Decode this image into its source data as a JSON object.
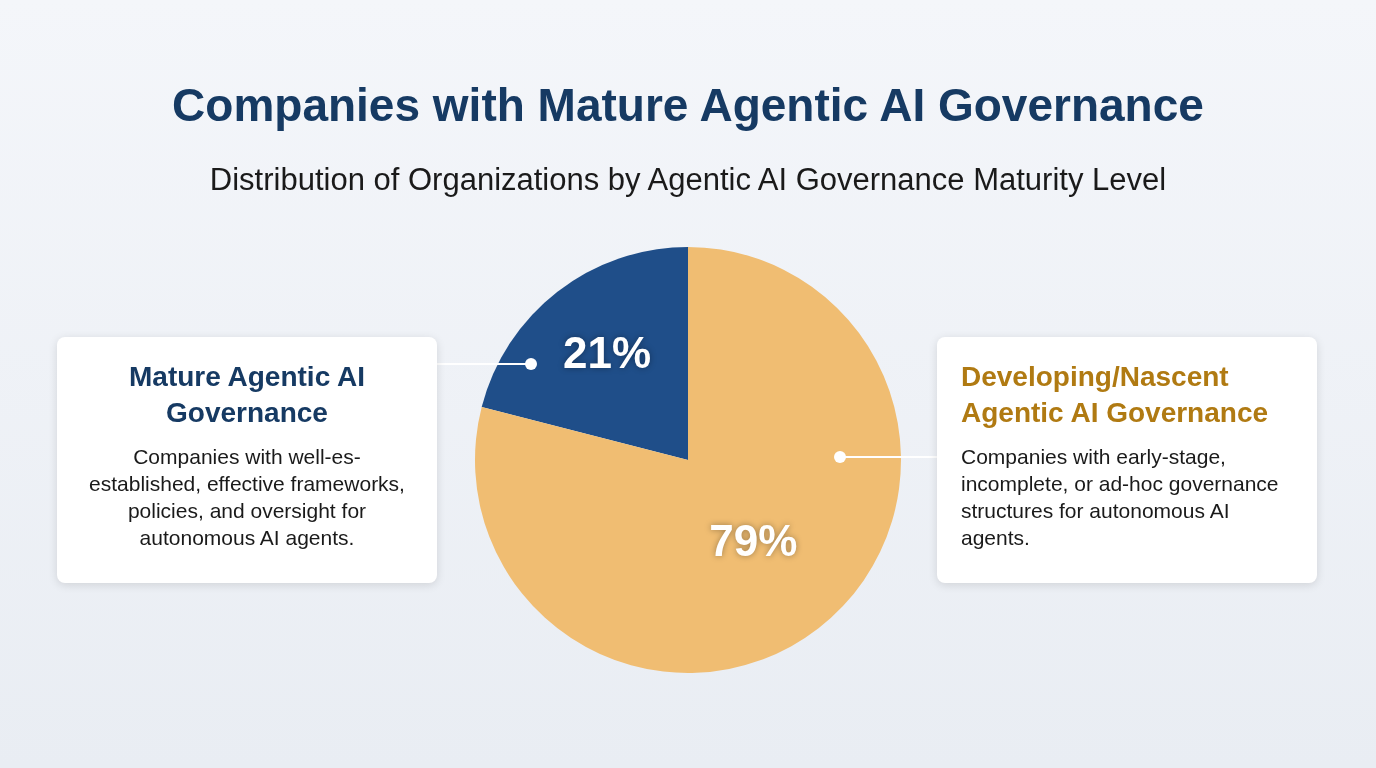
{
  "chart_data": {
    "type": "pie",
    "title": "Companies with Mature Agentic AI Governance",
    "subtitle": "Distribution of Organizations by Agentic AI Governance Maturity Level",
    "categories": [
      "Mature Agentic AI Governance",
      "Developing/Nascent Agentic AI Governance"
    ],
    "values": [
      21,
      79
    ],
    "colors": [
      "#1f4e89",
      "#f0bd72"
    ],
    "value_labels": [
      "21%",
      "79%"
    ],
    "annotations": [
      "Companies with well-es-established, effective frameworks, policies, and oversight for autonomous AI agents.",
      "Companies with early-stage, incomplete, or ad-hoc governance structures for autonomous AI agents."
    ],
    "legend": false
  }
}
